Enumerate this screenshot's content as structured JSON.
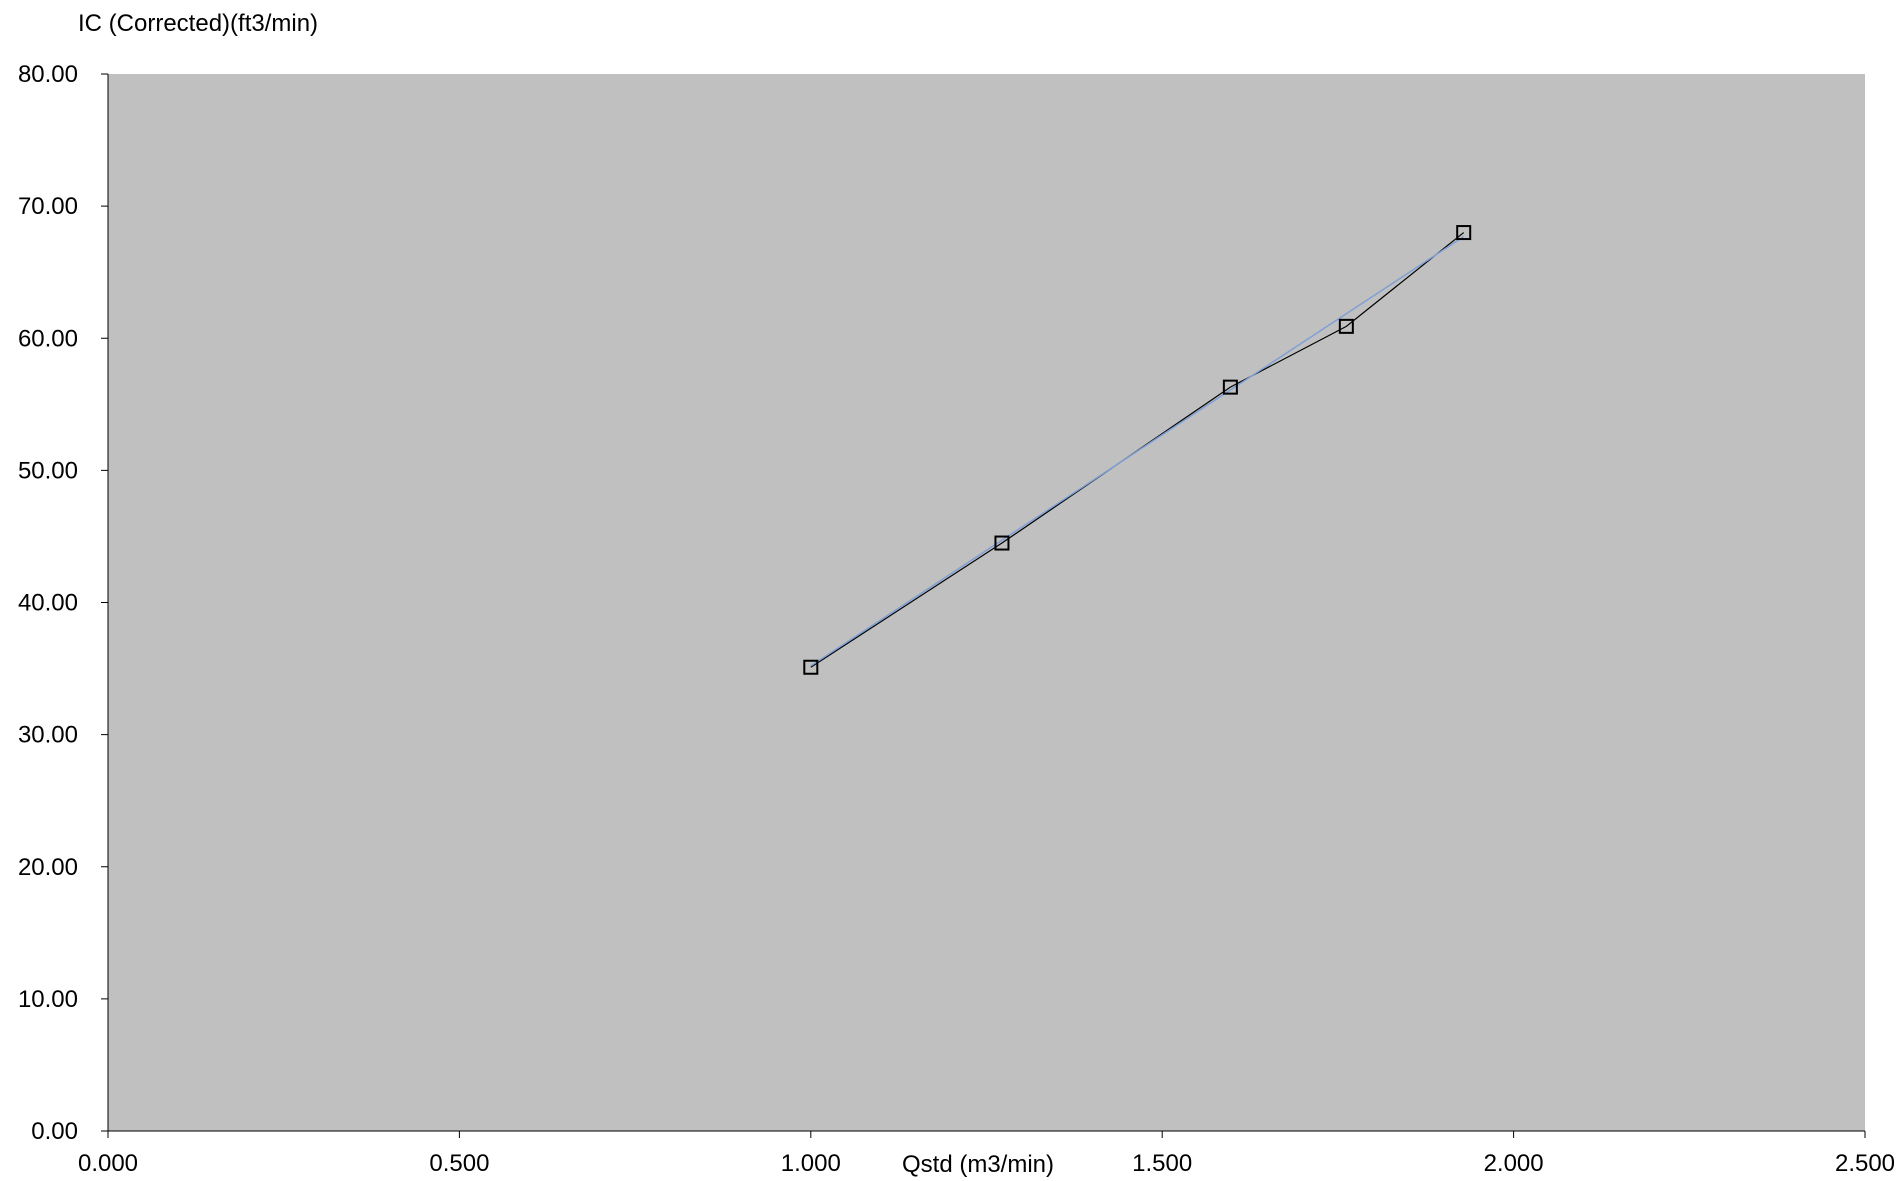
{
  "chart_data": {
    "type": "scatter",
    "title": "",
    "ylabel": "IC (Corrected)(ft3/min)",
    "xlabel": "Qstd (m3/min)",
    "xlim": [
      0,
      2.5
    ],
    "ylim": [
      0,
      80
    ],
    "x_ticks": [
      "0.000",
      "0.500",
      "1.000",
      "1.500",
      "2.000",
      "2.500"
    ],
    "y_ticks": [
      "0.00",
      "10.00",
      "20.00",
      "30.00",
      "40.00",
      "50.00",
      "60.00",
      "70.00",
      "80.00"
    ],
    "grid": false,
    "legend": "none",
    "plot_background": "#c0c0c0",
    "series": [
      {
        "kind": "data",
        "marker": "square",
        "color": "#000000",
        "x": [
          1.0,
          1.272,
          1.597,
          1.762,
          1.929
        ],
        "y": [
          35.1,
          44.5,
          56.3,
          60.9,
          68.0
        ]
      },
      {
        "kind": "trendline",
        "color": "#7f9fd5",
        "x": [
          1.0,
          1.929
        ],
        "y": [
          35.2,
          67.7
        ]
      }
    ]
  }
}
